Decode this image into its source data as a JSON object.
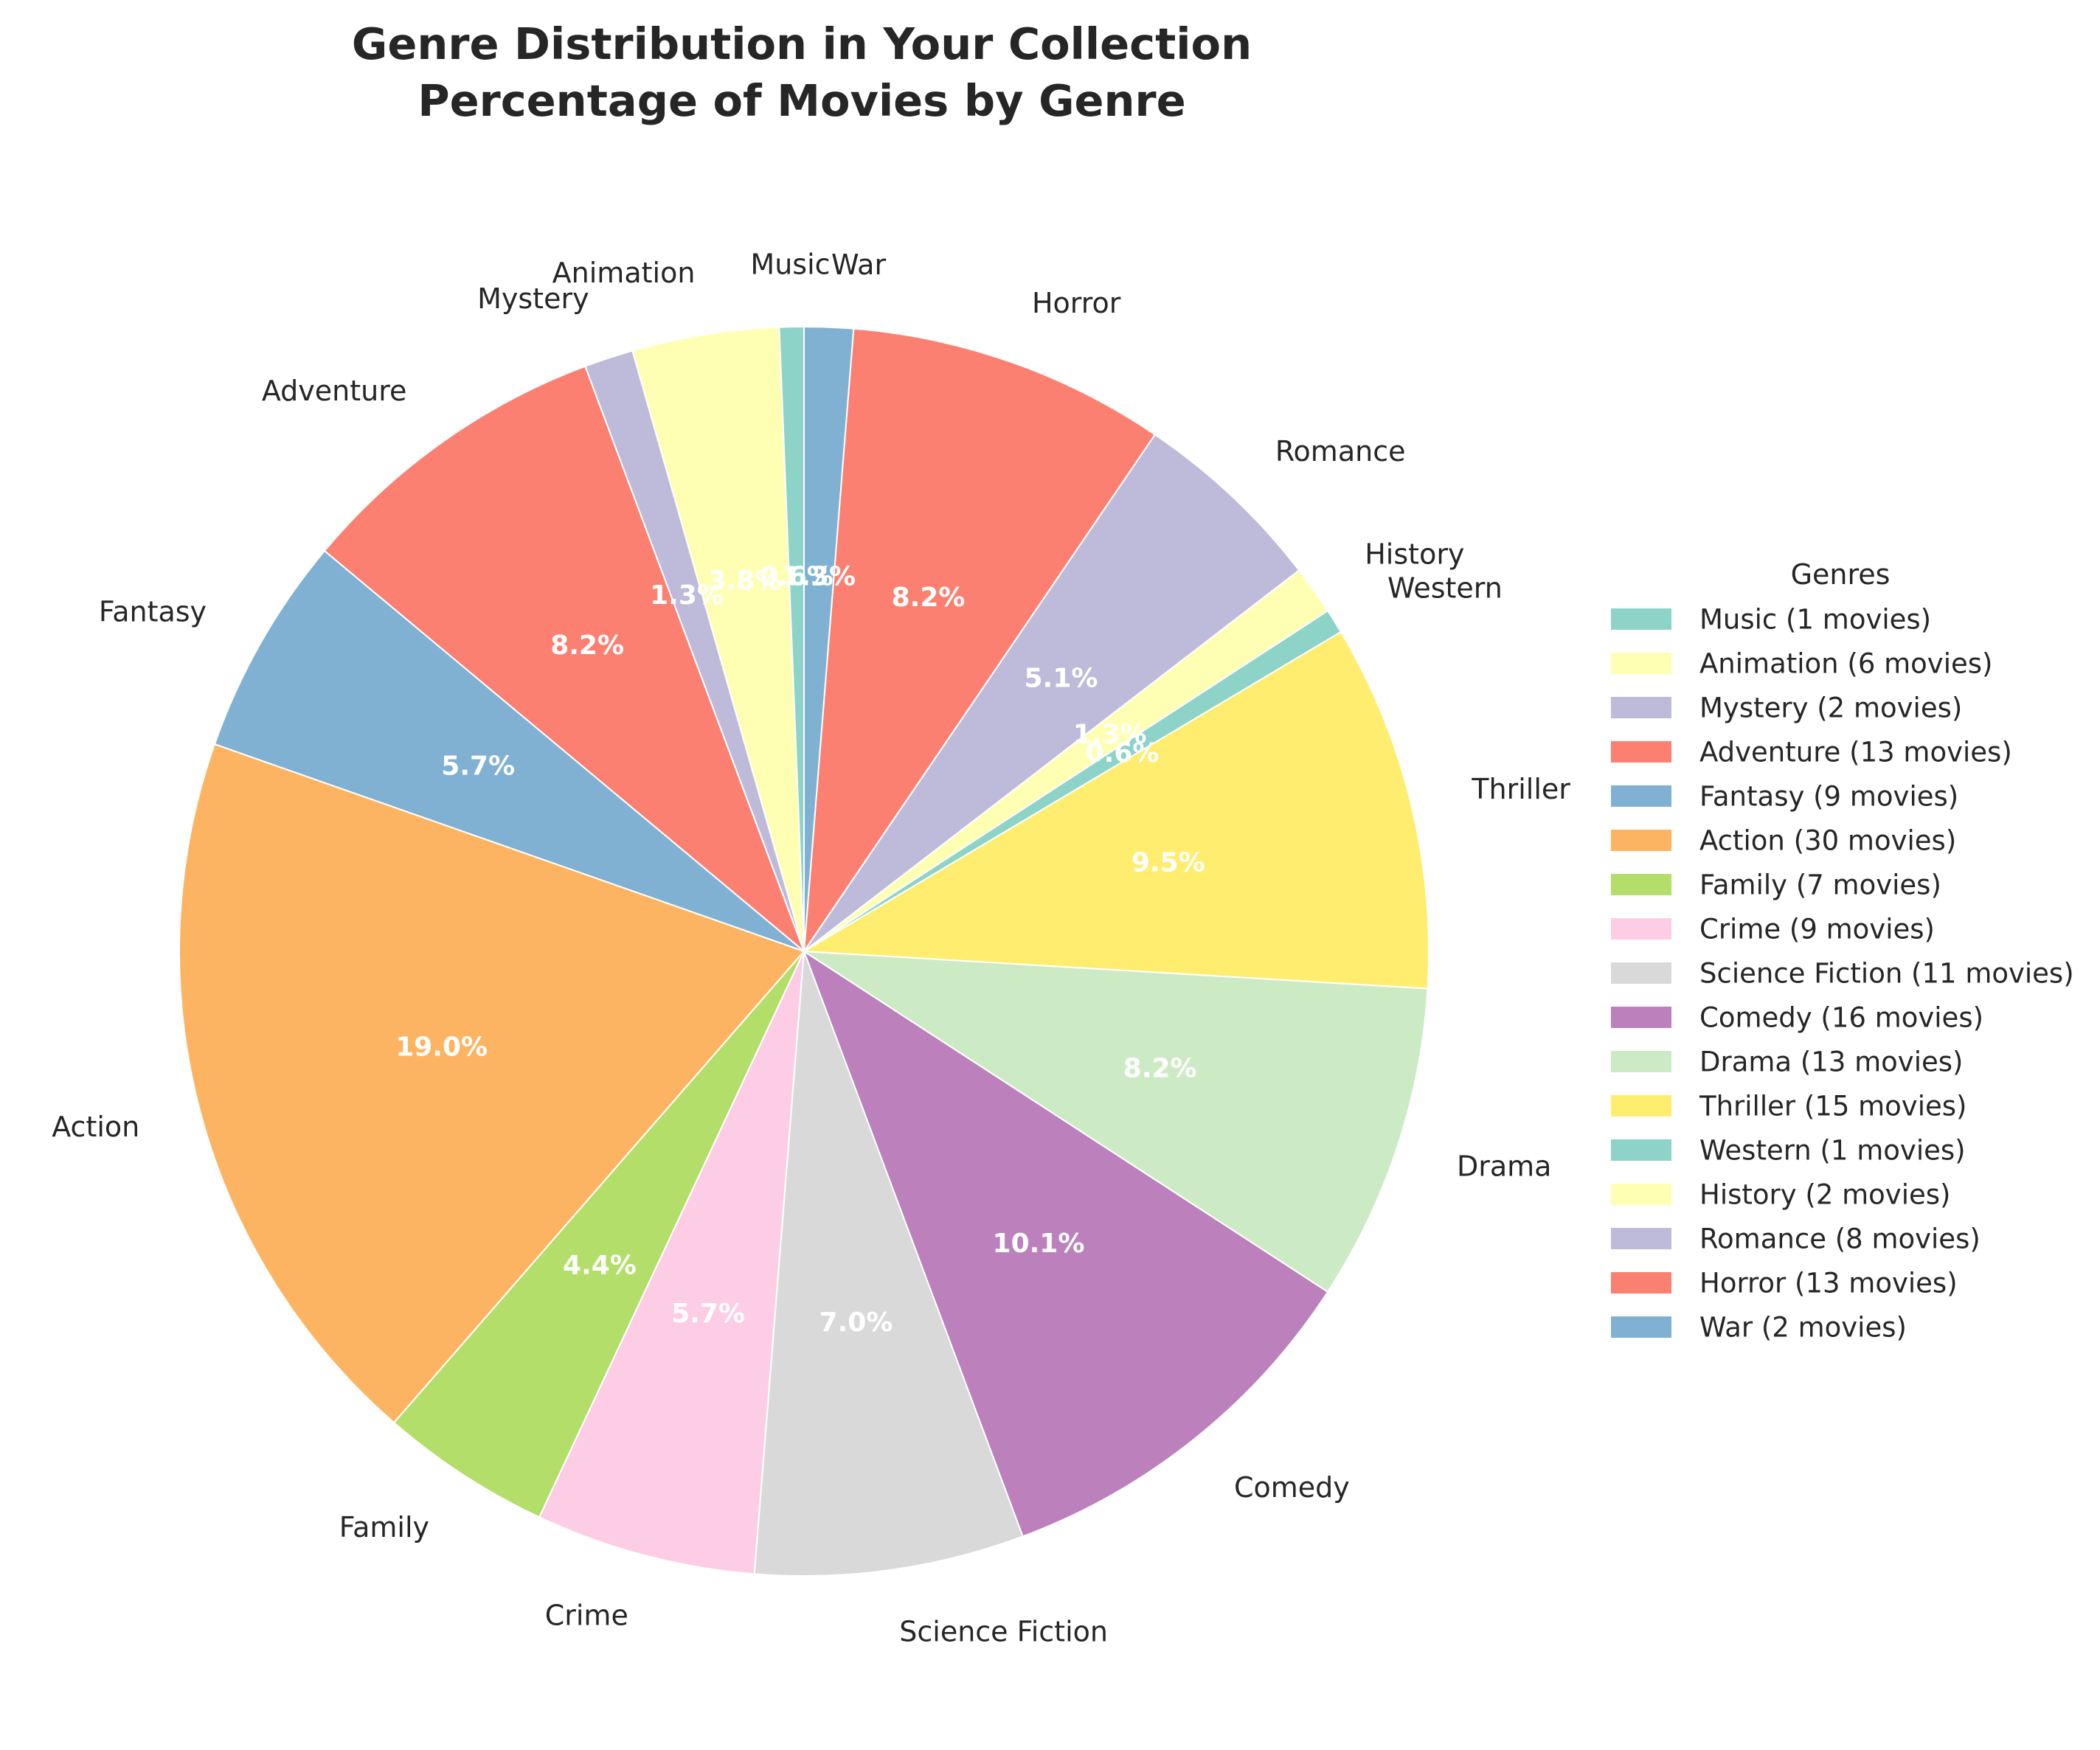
{
  "chart_data": {
    "type": "pie",
    "title": "Genre Distribution in Your Collection",
    "subtitle": "Percentage of Movies by Genre",
    "legend_title": "Genres",
    "legend_position": "right",
    "legend_suffix": "movies",
    "slices": [
      {
        "label": "Music",
        "count": 1,
        "pct": "0.6%",
        "color": "#8dd3c7"
      },
      {
        "label": "Animation",
        "count": 6,
        "pct": "3.8%",
        "color": "#ffffb3"
      },
      {
        "label": "Mystery",
        "count": 2,
        "pct": "1.3%",
        "color": "#bebada"
      },
      {
        "label": "Adventure",
        "count": 13,
        "pct": "8.2%",
        "color": "#fb8072"
      },
      {
        "label": "Fantasy",
        "count": 9,
        "pct": "5.7%",
        "color": "#80b1d3"
      },
      {
        "label": "Action",
        "count": 30,
        "pct": "19.0%",
        "color": "#fdb462"
      },
      {
        "label": "Family",
        "count": 7,
        "pct": "4.4%",
        "color": "#b3de69"
      },
      {
        "label": "Crime",
        "count": 9,
        "pct": "5.7%",
        "color": "#fccde5"
      },
      {
        "label": "Science Fiction",
        "count": 11,
        "pct": "7.0%",
        "color": "#d9d9d9"
      },
      {
        "label": "Comedy",
        "count": 16,
        "pct": "10.1%",
        "color": "#bc80bd"
      },
      {
        "label": "Drama",
        "count": 13,
        "pct": "8.2%",
        "color": "#ccebc5"
      },
      {
        "label": "Thriller",
        "count": 15,
        "pct": "9.5%",
        "color": "#ffed6f"
      },
      {
        "label": "Western",
        "count": 1,
        "pct": "0.6%",
        "color": "#8dd3c7"
      },
      {
        "label": "History",
        "count": 2,
        "pct": "1.3%",
        "color": "#ffffb3"
      },
      {
        "label": "Romance",
        "count": 8,
        "pct": "5.1%",
        "color": "#bebada"
      },
      {
        "label": "Horror",
        "count": 13,
        "pct": "8.2%",
        "color": "#fb8072"
      },
      {
        "label": "War",
        "count": 2,
        "pct": "1.3%",
        "color": "#80b1d3"
      }
    ]
  }
}
